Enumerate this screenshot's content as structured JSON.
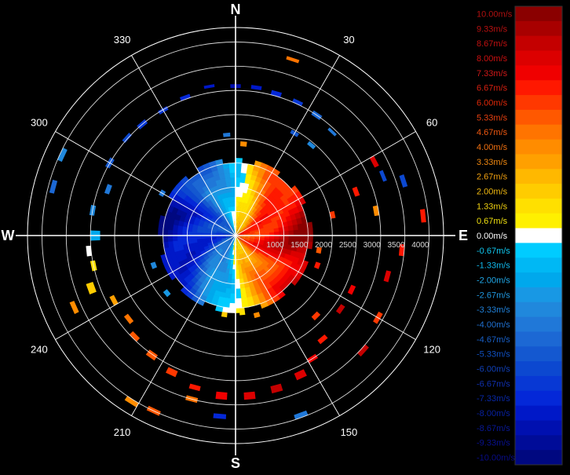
{
  "chart_data": {
    "type": "polar-heatmap",
    "description_axes": {
      "angular_unit": "degrees",
      "radial_range": [
        0,
        4300
      ]
    },
    "compass_labels": {
      "N": "N",
      "E": "E",
      "S": "S",
      "W": "W"
    },
    "bearing_ticks": [
      "30",
      "60",
      "120",
      "150",
      "210",
      "240",
      "300",
      "330"
    ],
    "bearing_values": [
      30,
      60,
      120,
      150,
      210,
      240,
      300,
      330
    ],
    "range_ticks": [
      "1000",
      "1500",
      "2000",
      "2500",
      "3000",
      "3500",
      "4000"
    ],
    "range_values": [
      1000,
      1500,
      2000,
      2500,
      3000,
      3500,
      4000
    ],
    "range_rings": [
      500,
      1000,
      1500,
      2000,
      2500,
      3000,
      3500,
      4000
    ],
    "colorbar": {
      "labels": [
        "10.00m/s",
        "9.33m/s",
        "8.67m/s",
        "8.00m/s",
        "7.33m/s",
        "6.67m/s",
        "6.00m/s",
        "5.33m/s",
        "4.67m/s",
        "4.00m/s",
        "3.33m/s",
        "2.67m/s",
        "2.00m/s",
        "1.33m/s",
        "0.67m/s",
        "0.00m/s",
        "-0.67m/s",
        "-1.33m/s",
        "-2.00m/s",
        "-2.67m/s",
        "-3.33m/s",
        "-4.00m/s",
        "-4.67m/s",
        "-5.33m/s",
        "-6.00m/s",
        "-6.67m/s",
        "-7.33m/s",
        "-8.00m/s",
        "-8.67m/s",
        "-9.33m/s",
        "-10.00m/s"
      ],
      "values": [
        10.0,
        9.33,
        8.67,
        8.0,
        7.33,
        6.67,
        6.0,
        5.33,
        4.67,
        4.0,
        3.33,
        2.67,
        2.0,
        1.33,
        0.67,
        0.0,
        -0.67,
        -1.33,
        -2.0,
        -2.67,
        -3.33,
        -4.0,
        -4.67,
        -5.33,
        -6.0,
        -6.67,
        -7.33,
        -8.0,
        -8.67,
        -9.33,
        -10.0
      ],
      "colors": [
        "#8a0000",
        "#a80000",
        "#c40000",
        "#dc0000",
        "#f00000",
        "#ff1800",
        "#ff3800",
        "#ff5800",
        "#ff7400",
        "#ff8c00",
        "#ffa000",
        "#ffb800",
        "#ffcc00",
        "#ffe000",
        "#fff000",
        "#ffffff",
        "#00ccff",
        "#00b8f4",
        "#00a8ec",
        "#1898e4",
        "#2088dc",
        "#2078d8",
        "#1c68d4",
        "#1458d0",
        "#0c48d0",
        "#0838d4",
        "#0428d8",
        "#0018c8",
        "#0010b0",
        "#000c98",
        "#000880"
      ],
      "label_colors": [
        "#b01010",
        "#b81010",
        "#c01010",
        "#cc1010",
        "#d01818",
        "#d82010",
        "#e02808",
        "#e84010",
        "#f05810",
        "#f07010",
        "#f08810",
        "#f0a010",
        "#f0b810",
        "#f0d010",
        "#f0e010",
        "#ffffff",
        "#10c8f0",
        "#10b8ec",
        "#20a8e8",
        "#2098e0",
        "#2080d8",
        "#2070d0",
        "#1860c8",
        "#1050c0",
        "#1040b8",
        "#1030b0",
        "#0828a8",
        "#0820a0",
        "#081898",
        "#081090",
        "#080c88"
      ]
    },
    "sector_field": {
      "description": "velocity (m/s) by bearing (deg) and range (m); positive toward east half, negative toward west half",
      "max_range": 1580,
      "az_step": 5,
      "range_step": 100
    },
    "echo_patches": [
      {
        "az": 18,
        "r0": 3790,
        "r1": 3860,
        "v": 4.67
      },
      {
        "az": 350,
        "r0": 3100,
        "r1": 3160,
        "v": -8.0
      },
      {
        "az": 340,
        "r0": 3000,
        "r1": 3080,
        "v": -7.33
      },
      {
        "az": 330,
        "r0": 2950,
        "r1": 3030,
        "v": -6.67
      },
      {
        "az": 320,
        "r0": 2950,
        "r1": 3050,
        "v": -6.67
      },
      {
        "az": 312,
        "r0": 2980,
        "r1": 3060,
        "v": -6.0
      },
      {
        "az": 0,
        "r0": 3050,
        "r1": 3130,
        "v": -8.67
      },
      {
        "az": 8,
        "r0": 3050,
        "r1": 3130,
        "v": -8.0
      },
      {
        "az": 16,
        "r0": 3000,
        "r1": 3100,
        "v": -7.33
      },
      {
        "az": 25,
        "r0": 3000,
        "r1": 3080,
        "v": -6.67
      },
      {
        "az": 34,
        "r0": 2950,
        "r1": 3050,
        "v": -4.67
      },
      {
        "az": 43,
        "r0": 2900,
        "r1": 2960,
        "v": -4.0
      },
      {
        "az": 30,
        "r0": 2400,
        "r1": 2480,
        "v": -5.33
      },
      {
        "az": 40,
        "r0": 2400,
        "r1": 2480,
        "v": -3.33
      },
      {
        "az": 62,
        "r0": 3200,
        "r1": 3300,
        "v": 8.0
      },
      {
        "az": 68,
        "r0": 3250,
        "r1": 3330,
        "v": -6.0
      },
      {
        "az": 72,
        "r0": 3600,
        "r1": 3700,
        "v": -6.0
      },
      {
        "az": 70,
        "r0": 2600,
        "r1": 2700,
        "v": 6.67
      },
      {
        "az": 78,
        "r0": 2000,
        "r1": 2100,
        "v": 6.0
      },
      {
        "az": 80,
        "r0": 2900,
        "r1": 3000,
        "v": 4.0
      },
      {
        "az": 84,
        "r0": 3850,
        "r1": 3950,
        "v": 6.67
      },
      {
        "az": 100,
        "r0": 1700,
        "r1": 1800,
        "v": 5.33
      },
      {
        "az": 110,
        "r0": 1750,
        "r1": 1850,
        "v": 6.67
      },
      {
        "az": 115,
        "r0": 2600,
        "r1": 2700,
        "v": 7.33
      },
      {
        "az": 125,
        "r0": 2600,
        "r1": 2700,
        "v": 8.67
      },
      {
        "az": 135,
        "r0": 2300,
        "r1": 2400,
        "v": 6.0
      },
      {
        "az": 140,
        "r0": 2750,
        "r1": 2850,
        "v": 6.67
      },
      {
        "az": 148,
        "r0": 2950,
        "r1": 3050,
        "v": 7.33
      },
      {
        "az": 155,
        "r0": 3100,
        "r1": 3250,
        "v": 8.0
      },
      {
        "az": 165,
        "r0": 3200,
        "r1": 3350,
        "v": 8.67
      },
      {
        "az": 175,
        "r0": 3250,
        "r1": 3400,
        "v": 8.0
      },
      {
        "az": 185,
        "r0": 3250,
        "r1": 3400,
        "v": 7.33
      },
      {
        "az": 195,
        "r0": 3200,
        "r1": 3300,
        "v": 6.67
      },
      {
        "az": 205,
        "r0": 3050,
        "r1": 3180,
        "v": 6.0
      },
      {
        "az": 215,
        "r0": 2950,
        "r1": 3080,
        "v": 5.33
      },
      {
        "az": 225,
        "r0": 2900,
        "r1": 3000,
        "v": 5.33
      },
      {
        "az": 232,
        "r0": 2750,
        "r1": 2850,
        "v": 4.67
      },
      {
        "az": 242,
        "r0": 2800,
        "r1": 2900,
        "v": 3.33
      },
      {
        "az": 250,
        "r0": 3100,
        "r1": 3250,
        "v": 2.0
      },
      {
        "az": 246,
        "r0": 3600,
        "r1": 3700,
        "v": 4.0
      },
      {
        "az": 258,
        "r0": 2950,
        "r1": 3050,
        "v": 1.33
      },
      {
        "az": 264,
        "r0": 3000,
        "r1": 3100,
        "v": 0.0
      },
      {
        "az": 270,
        "r0": 2800,
        "r1": 3000,
        "v": -2.0
      },
      {
        "az": 280,
        "r0": 2950,
        "r1": 3050,
        "v": -3.33
      },
      {
        "az": 290,
        "r0": 2750,
        "r1": 2850,
        "v": -4.0
      },
      {
        "az": 300,
        "r0": 2950,
        "r1": 3050,
        "v": -5.33
      },
      {
        "az": 295,
        "r0": 3900,
        "r1": 4000,
        "v": -3.33
      },
      {
        "az": 285,
        "r0": 3850,
        "r1": 3950,
        "v": -4.67
      },
      {
        "az": 175,
        "r0": 1500,
        "r1": 1650,
        "v": 1.33
      },
      {
        "az": 165,
        "r0": 1650,
        "r1": 1750,
        "v": 4.0
      },
      {
        "az": 188,
        "r0": 1600,
        "r1": 1700,
        "v": 2.0
      },
      {
        "az": 250,
        "r0": 1750,
        "r1": 1850,
        "v": -3.33
      },
      {
        "az": 230,
        "r0": 1800,
        "r1": 1900,
        "v": -2.67
      },
      {
        "az": 300,
        "r0": 1700,
        "r1": 1800,
        "v": -4.0
      },
      {
        "az": 355,
        "r0": 2050,
        "r1": 2130,
        "v": -4.0
      },
      {
        "az": 5,
        "r0": 1850,
        "r1": 1950,
        "v": 4.0
      },
      {
        "az": 95,
        "r0": 3400,
        "r1": 3500,
        "v": 6.67
      },
      {
        "az": 105,
        "r0": 3200,
        "r1": 3300,
        "v": 8.0
      },
      {
        "az": 120,
        "r0": 3350,
        "r1": 3450,
        "v": 6.0
      },
      {
        "az": 132,
        "r0": 3500,
        "r1": 3600,
        "v": 8.67
      },
      {
        "az": 160,
        "r0": 3900,
        "r1": 4000,
        "v": -4.0
      },
      {
        "az": 205,
        "r0": 3950,
        "r1": 4050,
        "v": 5.33
      },
      {
        "az": 212,
        "r0": 4000,
        "r1": 4100,
        "v": 4.0
      },
      {
        "az": 185,
        "r0": 3700,
        "r1": 3800,
        "v": -7.33
      },
      {
        "az": 195,
        "r0": 3450,
        "r1": 3550,
        "v": 4.67
      }
    ]
  }
}
